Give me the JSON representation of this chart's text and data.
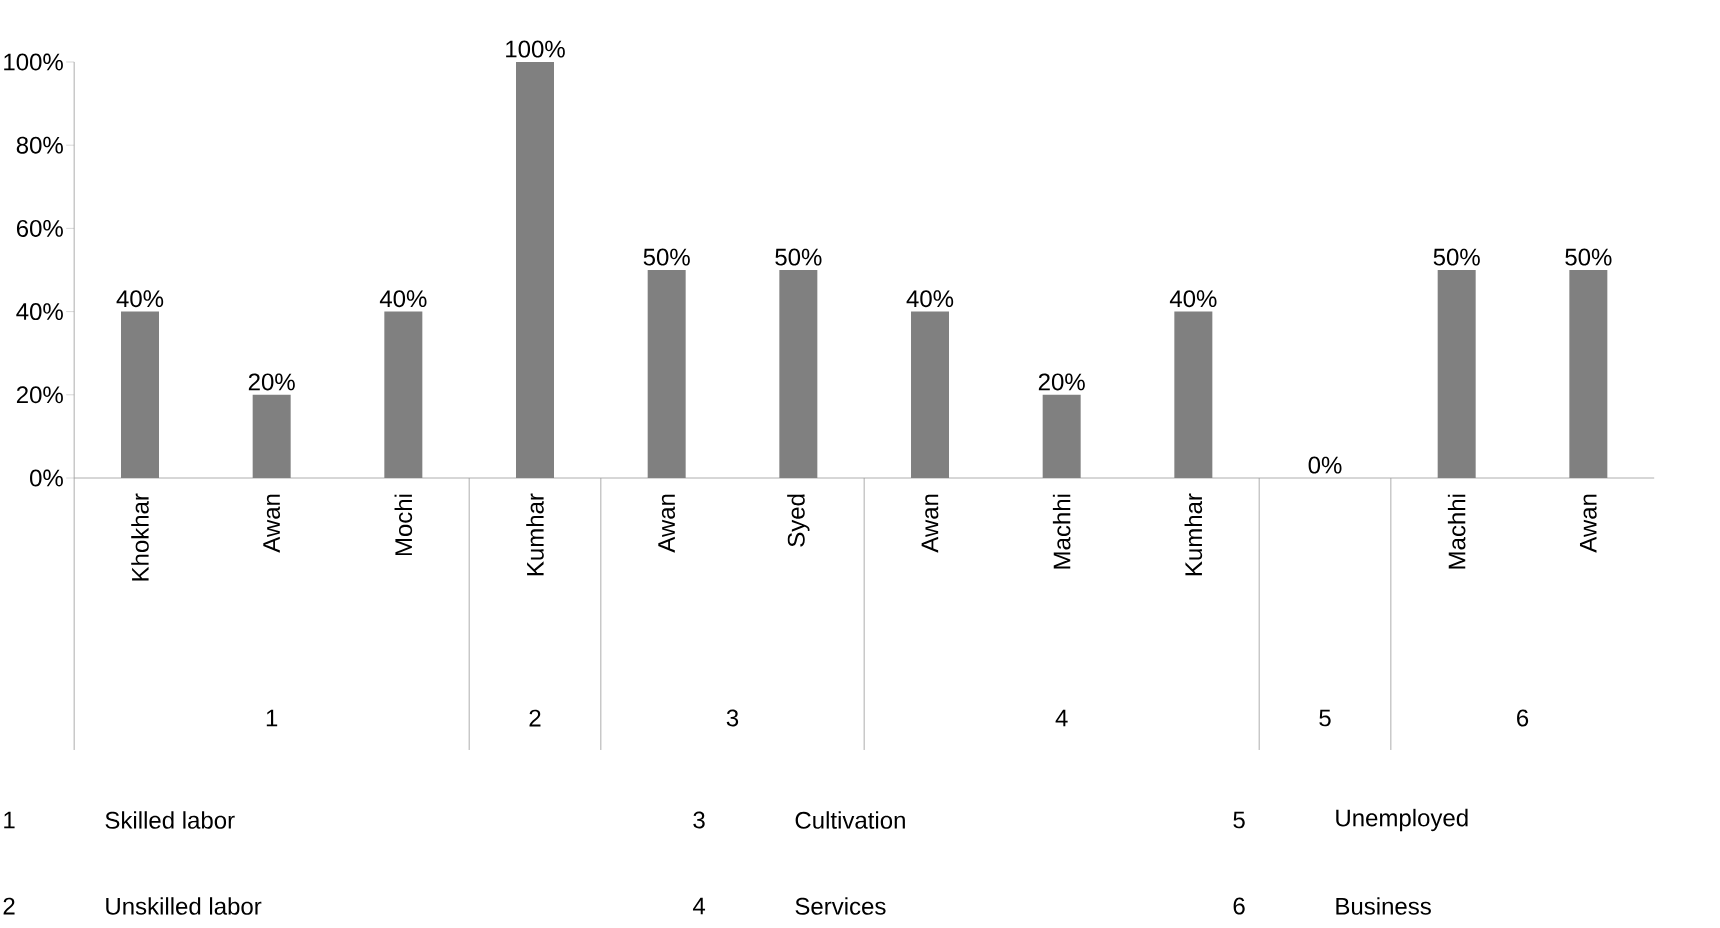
{
  "chart_data": {
    "type": "bar",
    "categories": [
      "Khokhar",
      "Awan",
      "Mochi",
      "Kumhar",
      "Awan",
      "Syed",
      "Awan",
      "Machhi",
      "Kumhar",
      null,
      "Machhi",
      "Awan"
    ],
    "values": [
      40,
      20,
      40,
      100,
      50,
      50,
      40,
      20,
      40,
      0,
      50,
      50
    ],
    "value_labels": [
      "40%",
      "20%",
      "40%",
      "100%",
      "50%",
      "50%",
      "40%",
      "20%",
      "40%",
      "0%",
      "50%",
      "50%"
    ],
    "color": "#808080",
    "ylim": [
      0,
      100
    ],
    "yticks": [
      {
        "value": 0,
        "label": "0%"
      },
      {
        "value": 20,
        "label": "20%"
      },
      {
        "value": 40,
        "label": "40%"
      },
      {
        "value": 60,
        "label": "60%"
      },
      {
        "value": 80,
        "label": "80%"
      },
      {
        "value": 100,
        "label": "100%"
      }
    ],
    "grid": false,
    "annotations": [
      "1",
      "2",
      "3",
      "4",
      "5",
      "6",
      "1",
      "Skilled labor",
      "2",
      "Unskilled labor",
      "3",
      "Cultivation",
      "4",
      "Services",
      "5",
      "Unemployed",
      "6",
      "Business"
    ]
  }
}
